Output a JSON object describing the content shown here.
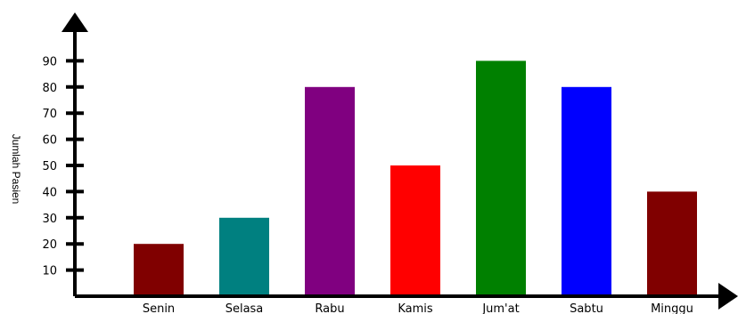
{
  "chart_data": {
    "type": "bar",
    "title": "",
    "xlabel": "",
    "ylabel": "Jumlah Pasien",
    "categories": [
      "Senin",
      "Selasa",
      "Rabu",
      "Kamis",
      "Jum'at",
      "Sabtu",
      "Minggu"
    ],
    "values": [
      20,
      30,
      80,
      50,
      90,
      80,
      40
    ],
    "colors": [
      "#800000",
      "#008080",
      "#800080",
      "#ff0000",
      "#008000",
      "#0000ff",
      "#800000"
    ],
    "yticks": [
      10,
      20,
      30,
      40,
      50,
      60,
      70,
      80,
      90
    ],
    "ylim": [
      0,
      100
    ],
    "grid": false,
    "legend": "none"
  }
}
